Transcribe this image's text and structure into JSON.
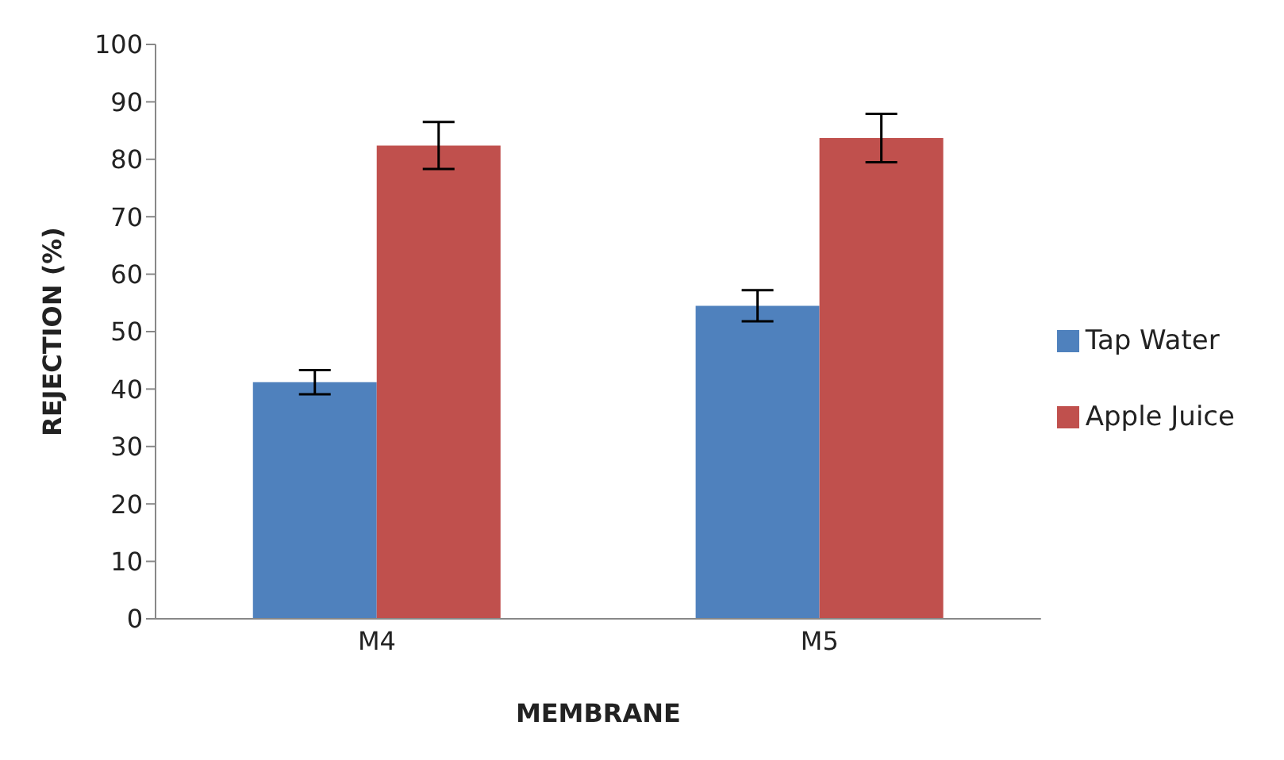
{
  "chart_data": {
    "type": "bar",
    "xlabel": "MEMBRANE",
    "ylabel": "REJECTION (%)",
    "categories": [
      "M4",
      "M5"
    ],
    "series": [
      {
        "name": "Tap Water",
        "color": "#4f81bd",
        "values": [
          41.2,
          54.5
        ],
        "errors": [
          2.1,
          2.7
        ]
      },
      {
        "name": "Apple Juice",
        "color": "#c0504d",
        "values": [
          82.4,
          83.7
        ],
        "errors": [
          4.1,
          4.2
        ]
      }
    ],
    "ylim": [
      0,
      100
    ],
    "yticks": [
      0,
      10,
      20,
      30,
      40,
      50,
      60,
      70,
      80,
      90,
      100
    ],
    "grid": false,
    "legend": "right"
  }
}
